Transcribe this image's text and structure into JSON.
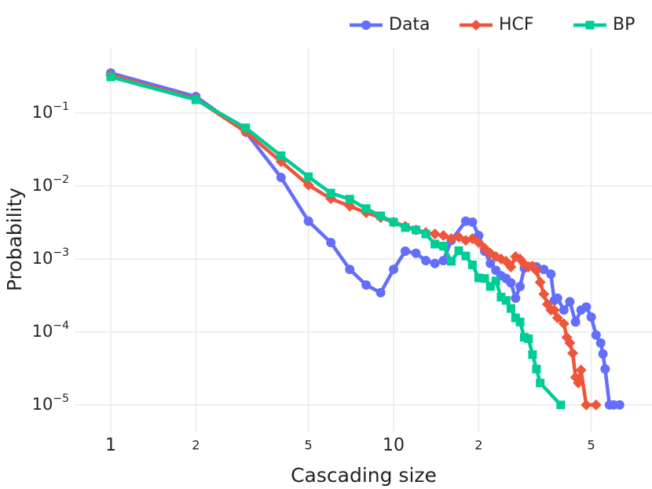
{
  "chart_data": {
    "type": "line",
    "x_label": "Cascading size",
    "y_label": "Probability",
    "log_x": true,
    "log_y": true,
    "grid": true,
    "legend": "top-right",
    "xlim": [
      0.745,
      82
    ],
    "ylim": [
      4.3e-06,
      0.8
    ],
    "xticks": [
      1,
      2,
      5,
      10,
      {
        "value": 20,
        "label": "2"
      },
      {
        "value": 50,
        "label": "5"
      }
    ],
    "yticks": [
      {
        "value": 0.1,
        "label": "10",
        "exponent": "−1"
      },
      {
        "value": 0.01,
        "label": "10",
        "exponent": "−2"
      },
      {
        "value": 0.001,
        "label": "10",
        "exponent": "−3"
      },
      {
        "value": 0.0001,
        "label": "10",
        "exponent": "−4"
      },
      {
        "value": 1e-05,
        "label": "10",
        "exponent": "−5"
      }
    ],
    "series": [
      {
        "name": "Data",
        "color": "#636efa",
        "symbol": "circle",
        "x": [
          1,
          2,
          3,
          4,
          5,
          6,
          7,
          8,
          9,
          10,
          11,
          12,
          13,
          14,
          15,
          16,
          18,
          19,
          20,
          21,
          22,
          23,
          24,
          25,
          26,
          27,
          28,
          29,
          30,
          32,
          34,
          36,
          37,
          38,
          40,
          42,
          44,
          46,
          48,
          50,
          52,
          54,
          55,
          56,
          58,
          60,
          63
        ],
        "values": [
          0.353,
          0.168,
          0.055,
          0.0131,
          0.0033,
          0.00168,
          0.00072,
          0.00044,
          0.000345,
          0.00072,
          0.00128,
          0.0012,
          0.00095,
          0.00087,
          0.00095,
          0.0018,
          0.0033,
          0.0032,
          0.0021,
          0.00128,
          0.00087,
          0.0007,
          0.00059,
          0.00054,
          0.00047,
          0.00029,
          0.00042,
          0.00075,
          0.00079,
          0.00078,
          0.00072,
          0.00062,
          0.00027,
          0.00029,
          0.0002,
          0.00026,
          0.000137,
          0.0002,
          0.00022,
          0.00016,
          9.1e-05,
          7.06e-05,
          5e-05,
          3.11e-05,
          1e-05,
          1e-05,
          1e-05
        ]
      },
      {
        "name": "HCF",
        "color": "#ef553b",
        "symbol": "diamond",
        "x": [
          1,
          2,
          3,
          4,
          5,
          6,
          7,
          8,
          9,
          10,
          11,
          12,
          13,
          14,
          15,
          16,
          17,
          18,
          19,
          20,
          21,
          22,
          23,
          24,
          25,
          26,
          27,
          28,
          29,
          30,
          31,
          32,
          33,
          34,
          35,
          36,
          37,
          38,
          40,
          41,
          42,
          43,
          44,
          45,
          46,
          48,
          52
        ],
        "values": [
          0.328,
          0.156,
          0.055,
          0.0216,
          0.0103,
          0.0067,
          0.0053,
          0.0043,
          0.0037,
          0.0032,
          0.0028,
          0.0025,
          0.0023,
          0.0022,
          0.0021,
          0.0019,
          0.002,
          0.0018,
          0.0019,
          0.00168,
          0.0014,
          0.0012,
          0.00108,
          0.001,
          0.00093,
          0.00078,
          0.00108,
          0.001,
          0.00085,
          0.00078,
          0.0008,
          0.00069,
          0.00048,
          0.00033,
          0.00024,
          0.0002,
          0.0002,
          0.000156,
          0.00013,
          8.45e-05,
          7.06e-05,
          5.11e-05,
          2.4e-05,
          2e-05,
          3e-05,
          1e-05,
          1e-05
        ]
      },
      {
        "name": "BP",
        "color": "#00cc96",
        "symbol": "square",
        "x": [
          1,
          2,
          3,
          4,
          5,
          6,
          7,
          8,
          9,
          10,
          11,
          12,
          13,
          14,
          15,
          16,
          17,
          18,
          19,
          20,
          21,
          22,
          23,
          24,
          25,
          26,
          27,
          28,
          29,
          30,
          31,
          32,
          33,
          39
        ],
        "values": [
          0.312,
          0.152,
          0.0625,
          0.026,
          0.0134,
          0.008,
          0.0066,
          0.0049,
          0.0039,
          0.0032,
          0.0027,
          0.0025,
          0.0022,
          0.0016,
          0.0015,
          0.00093,
          0.0013,
          0.0011,
          0.00083,
          0.00055,
          0.00054,
          0.00042,
          0.0005,
          0.0003,
          0.00027,
          0.00021,
          0.000156,
          0.000137,
          8.45e-05,
          8.07e-05,
          4.89e-05,
          3.11e-05,
          2e-05,
          1e-05
        ]
      }
    ]
  }
}
